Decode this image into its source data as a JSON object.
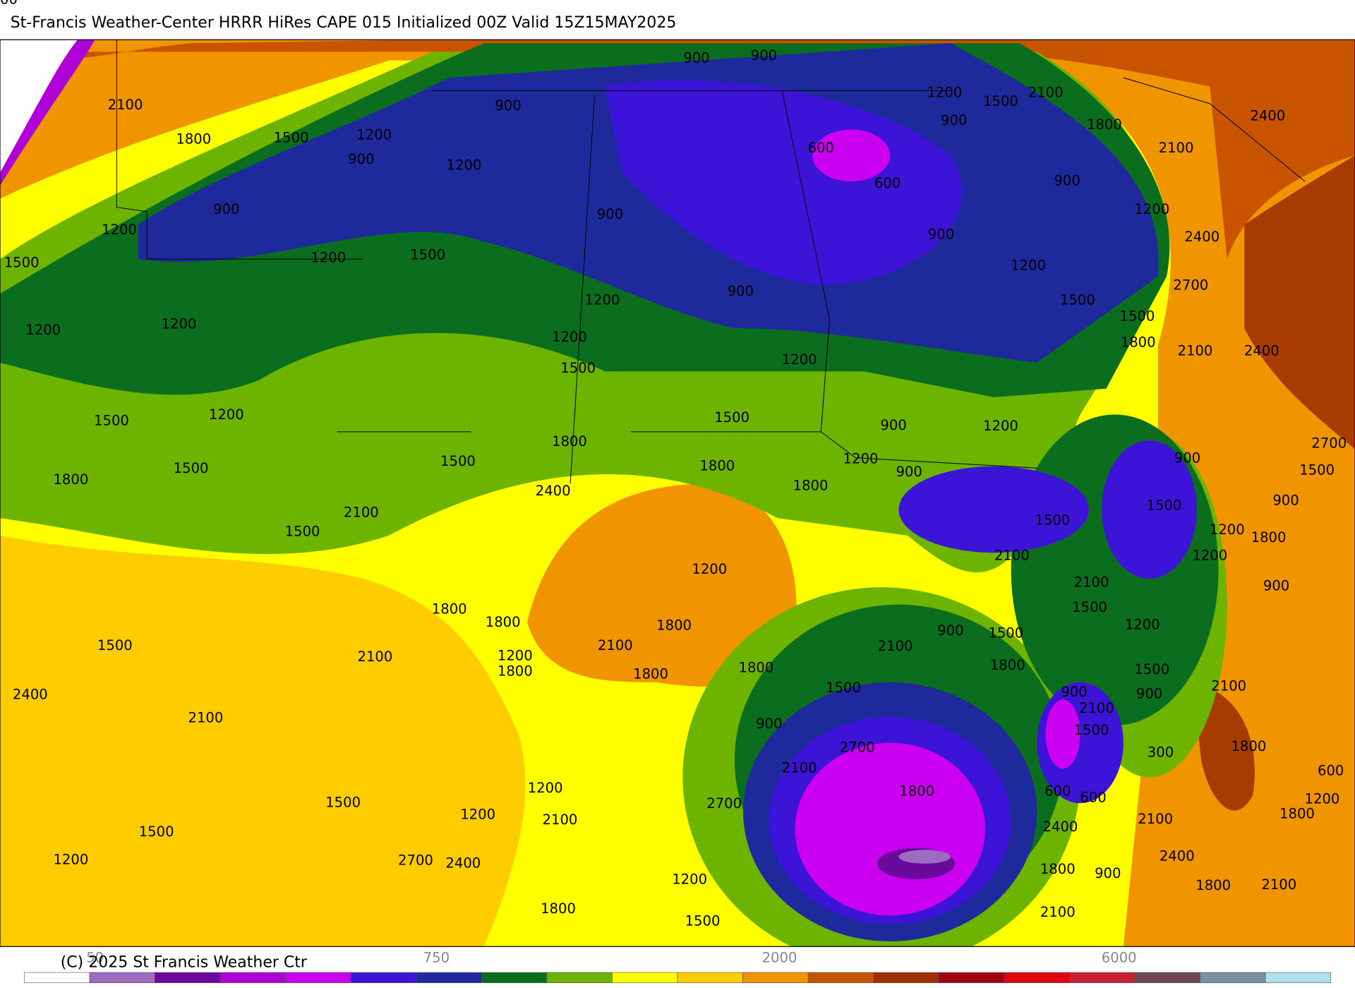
{
  "header": {
    "title": "St-Francis Weather-Center HRRR HiRes CAPE  015 Initialized  00Z Valid 15Z15MAY2025"
  },
  "contour_labels": [
    2100,
    1800,
    1500,
    1200,
    900,
    1200,
    900,
    900,
    900,
    1200,
    2100,
    1500,
    1800,
    2400,
    900,
    600,
    600,
    2100,
    900,
    1200,
    2400,
    900,
    1200,
    1500,
    1200,
    1500,
    900,
    900,
    1200,
    2700,
    1200,
    1200,
    1200,
    900,
    1500,
    1500,
    1800,
    2100,
    2400,
    1200,
    1500,
    1200,
    1500,
    1200,
    1500,
    900,
    1200,
    1800,
    2700,
    1800,
    1500,
    1500,
    1800,
    1200,
    900,
    900,
    1500,
    2400,
    1800,
    1500,
    900,
    2100,
    1500,
    1500,
    1200,
    1800,
    2100,
    1200,
    1200,
    2100,
    900,
    1800,
    1800,
    1500,
    1200,
    900,
    1500,
    1500,
    1800,
    2100,
    2100,
    1200,
    2100,
    1800,
    1800,
    1800,
    1800,
    1500,
    1500,
    900,
    900,
    2100,
    2400,
    2100,
    2100,
    900,
    1500,
    1800,
    2700,
    300,
    2100,
    600,
    1200,
    1800,
    600,
    600,
    1200,
    1500,
    2700,
    1200,
    2100,
    1800,
    2100,
    1500,
    2400,
    1200,
    2700,
    2400,
    2400,
    1800,
    900,
    1200,
    1800,
    2100,
    1800,
    2100,
    1500,
    1500
  ],
  "colorbar": {
    "labels": [
      "50",
      "750",
      "2000",
      "6000"
    ],
    "colors": [
      "#ffffff",
      "#9c6cc0",
      "#6a0a9c",
      "#b000d8",
      "#cc00f0",
      "#3c14d8",
      "#1e2a9c",
      "#0a6e1e",
      "#6cb400",
      "#ffff00",
      "#ffcc00",
      "#f09400",
      "#c85400",
      "#a03000",
      "#a00010",
      "#e00010",
      "#c82030",
      "#6e4a50",
      "#7890a0",
      "#b0e0f0"
    ]
  },
  "footer": {
    "copyright": "(C) 2025 St Francis Weather Ctr"
  }
}
